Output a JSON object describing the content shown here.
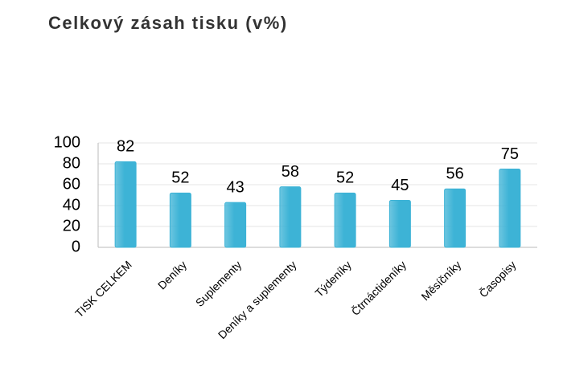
{
  "chart_data": {
    "type": "bar",
    "title": "Celkový zásah tisku (v%)",
    "categories": [
      "TISK CELKEM",
      "Deníky",
      "Suplementy",
      "Deníky a suplementy",
      "Týdeníky",
      "Čtrnáctideníky",
      "Měsíčníky",
      "Časopisy"
    ],
    "values": [
      82,
      52,
      43,
      58,
      52,
      45,
      56,
      75
    ],
    "color": "#3db3d6",
    "ylim": [
      0,
      100
    ],
    "yticks": [
      0,
      20,
      40,
      60,
      80,
      100
    ],
    "grid": true
  }
}
